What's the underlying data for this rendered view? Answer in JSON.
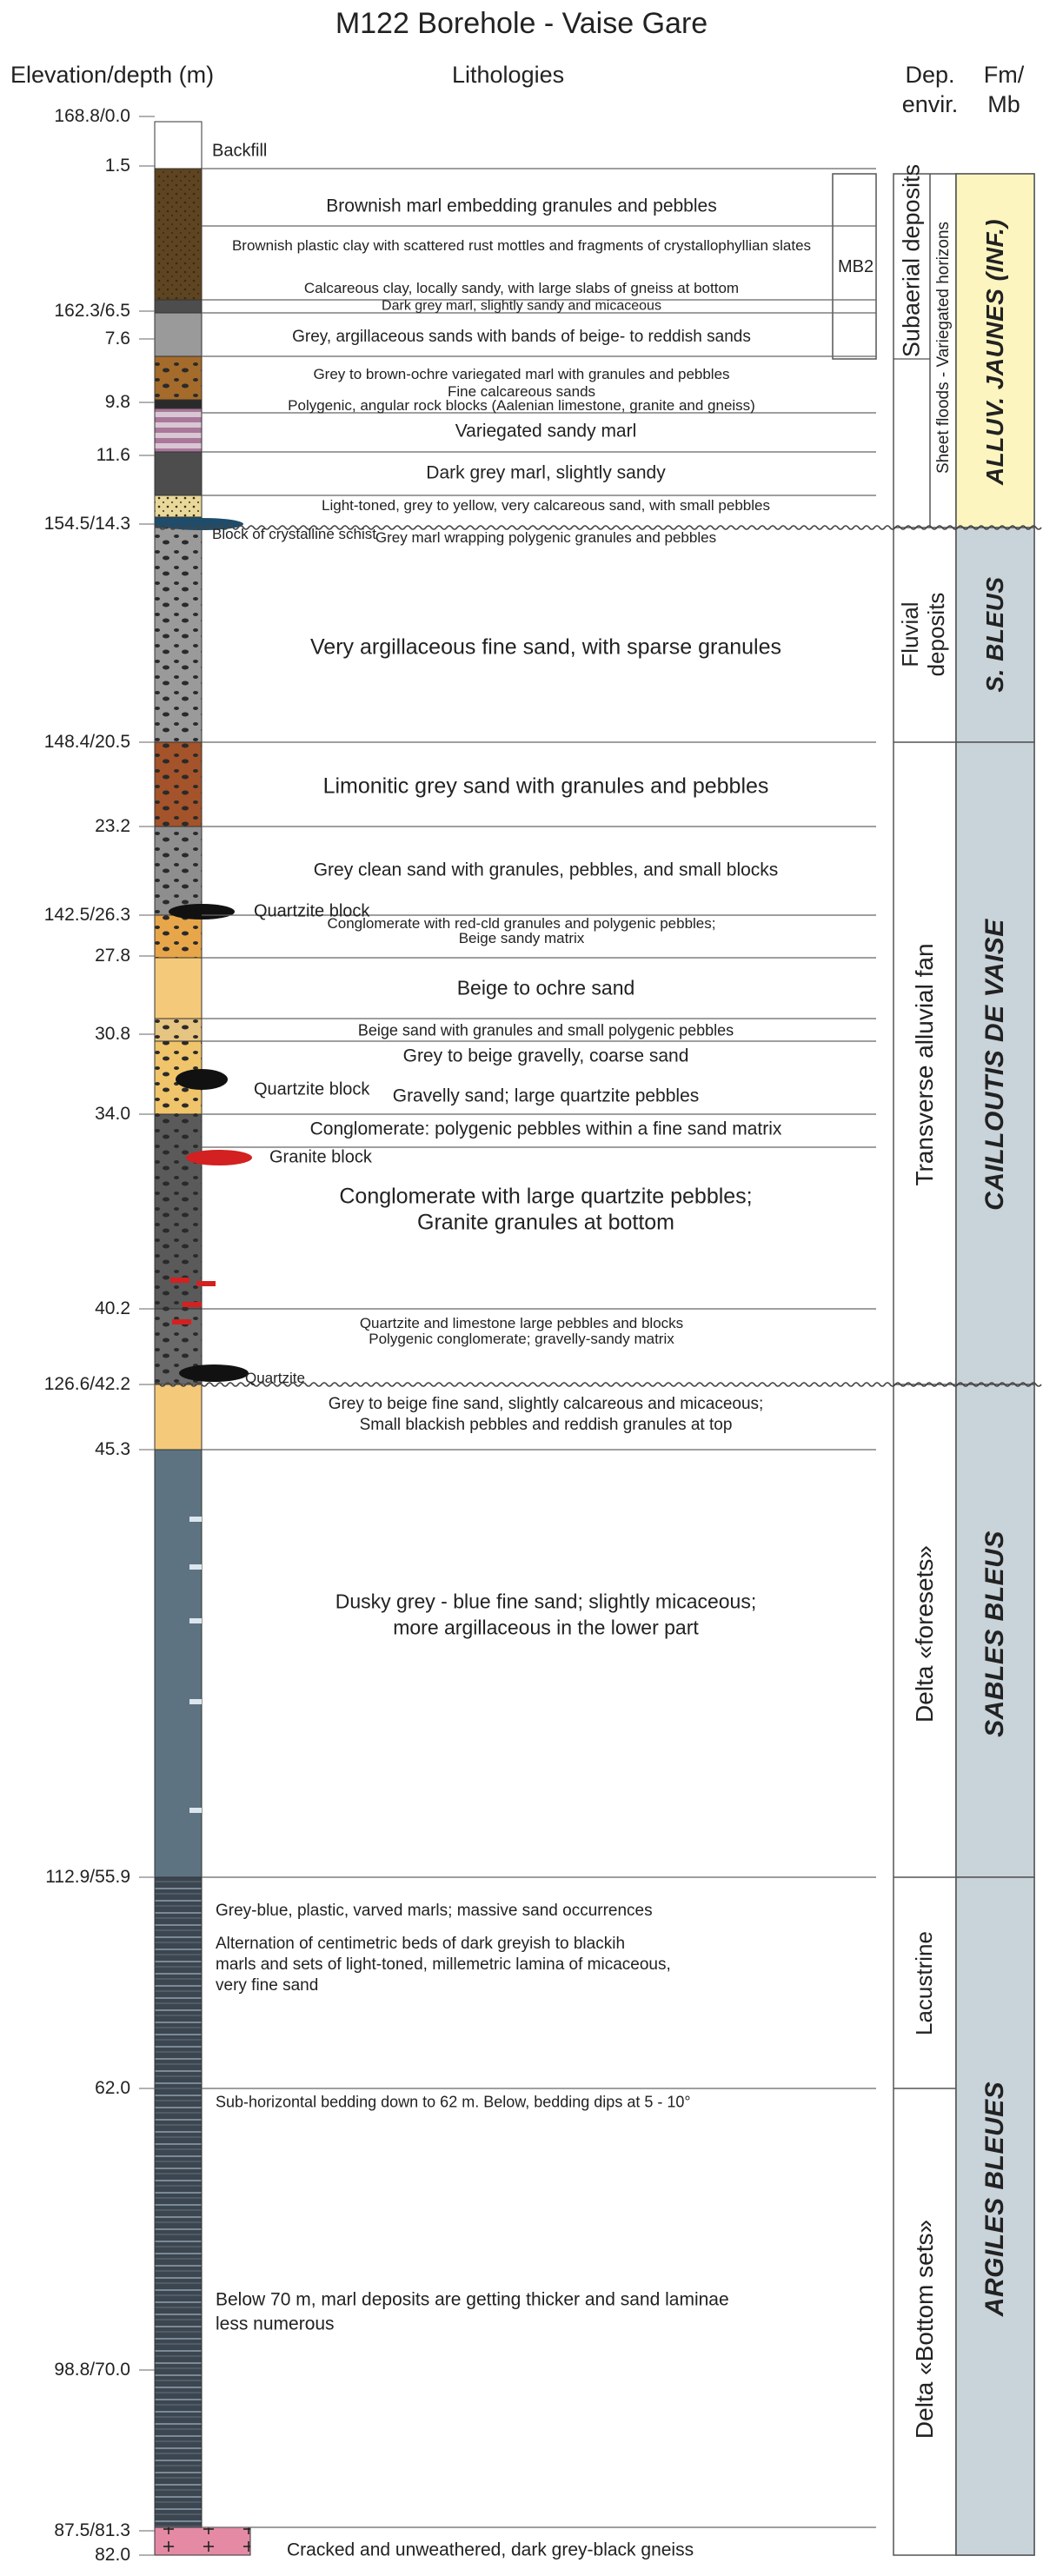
{
  "title": "M122 Borehole - Vaise Gare",
  "headers": {
    "elevation": "Elevation/depth (m)",
    "lithologies": "Lithologies",
    "dep_envir": "Dep.\nenvir.",
    "fm_mb": "Fm/\nMb"
  },
  "depth_labels": [
    "168.8/0.0",
    "1.5",
    "162.3/6.5",
    "7.6",
    "9.8",
    "11.6",
    "154.5/14.3",
    "148.4/20.5",
    "23.2",
    "142.5/26.3",
    "27.8",
    "30.8",
    "34.0",
    "40.2",
    "126.6/42.2",
    "45.3",
    "112.9/55.9",
    "62.0",
    "98.8/70.0",
    "87.5/81.3",
    "82.0"
  ],
  "descriptions": [
    "Brownish marl embedding granules and pebbles",
    "Brownish plastic clay with scattered rust mottles and fragments of crystallophyllian slates",
    "Calcareous clay, locally sandy, with large slabs of gneiss at bottom",
    "Dark grey marl, slightly sandy and micaceous",
    "Grey, argillaceous sands with bands of beige- to reddish sands",
    "Grey to brown-ochre variegated marl with granules and pebbles",
    "Fine calcareous sands",
    "Polygenic, angular rock blocks (Aalenian limestone, granite and gneiss)",
    "Variegated sandy marl",
    "Dark grey marl, slightly sandy",
    "Light-toned, grey to yellow, very calcareous sand, with small pebbles",
    "Grey marl wrapping polygenic granules and pebbles",
    "Very argillaceous fine sand, with sparse granules",
    "Limonitic grey sand with granules and pebbles",
    "Grey clean sand with granules, pebbles, and small blocks",
    "Conglomerate with red-cld granules and polygenic pebbles;",
    "Beige sandy matrix",
    "Beige to ochre sand",
    "Beige sand with granules and small polygenic pebbles",
    "Grey to beige gravelly, coarse sand",
    "Gravelly sand; large quartzite pebbles",
    "Conglomerate: polygenic pebbles within a fine sand matrix",
    "Conglomerate with large quartzite pebbles;",
    "Granite granules at bottom",
    "Quartzite and limestone large pebbles and blocks",
    "Polygenic conglomerate; gravelly-sandy matrix",
    "Grey to beige fine sand, slightly calcareous and micaceous;",
    "Small blackish pebbles and reddish granules at top",
    "Dusky grey - blue fine sand; slightly micaceous;",
    "more argillaceous in the lower part",
    "Grey-blue, plastic, varved marls; massive sand occurrences",
    "Alternation of centimetric beds of dark greyish to blackih",
    "marls and sets of light-toned, millemetric lamina of micaceous,",
    "very fine sand",
    "Sub-horizontal bedding down to 62 m. Below, bedding dips at 5 - 10°",
    "Below 70 m, marl deposits are getting thicker and sand laminae",
    "less numerous",
    "Cracked and unweathered, dark grey-black gneiss"
  ],
  "column_notes": [
    "Backfill",
    "Block of crystalline schist",
    "Quartzite block",
    "Quartzite block",
    "Granite block",
    "Quartzite"
  ],
  "member": "MB2",
  "environments": [
    "Subaerial deposits",
    "Sheet floods - Variegated horizons",
    "Fluvial",
    "deposits",
    "Transverse alluvial fan",
    "Delta «foresets»",
    "Lacustrine",
    "Delta «Bottom sets»"
  ],
  "formations": [
    "ALLUV. JAUNES (INF.)",
    "S. BLEUS",
    "CAILLOUTIS DE VAISE",
    "SABLES BLEUS",
    "ARGILES BLEUES"
  ],
  "colors": {
    "alluv_jaunes": "#fdf5c0",
    "formation_grey": "#c9d3da",
    "clay_brown": "#5e4421",
    "marl_grey": "#4d4d4d",
    "sand_grey": "#9a9a9a",
    "limonite": "#a4532a",
    "ochre_sand": "#f5c97a",
    "blue_sand": "#5d7382",
    "varved_marl": "#3c4650",
    "gneiss_pink": "#e48aa4"
  }
}
